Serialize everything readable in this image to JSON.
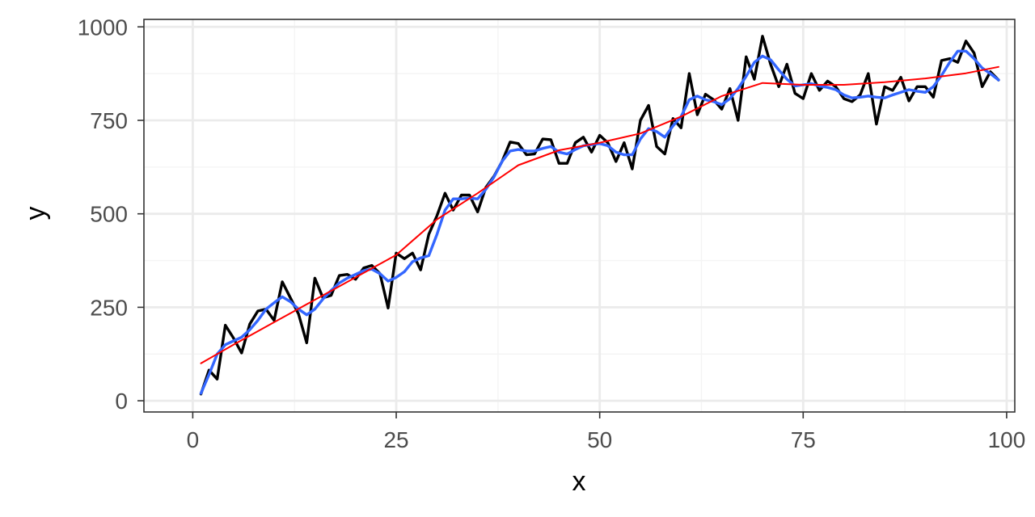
{
  "chart_data": {
    "type": "line",
    "xlabel": "x",
    "ylabel": "y",
    "xlim": [
      -6,
      101
    ],
    "ylim": [
      -30,
      1020
    ],
    "x_ticks": [
      0,
      25,
      50,
      75,
      100
    ],
    "y_ticks": [
      0,
      250,
      500,
      750,
      1000
    ],
    "x_minor_ticks": [
      12.5,
      37.5,
      62.5,
      87.5
    ],
    "y_minor_ticks": [
      125,
      375,
      625,
      875
    ],
    "grid": true,
    "legend": "none",
    "colors": {
      "raw": "#000000",
      "moving_average": "#3366FF",
      "smooth": "#FF0000",
      "grid_major": "#EBEBEB",
      "grid_minor": "#F4F4F4",
      "panel_border": "#333333",
      "tick_text": "#4D4D4D"
    },
    "series": [
      {
        "x": [
          1,
          2,
          3,
          4,
          5,
          6,
          7,
          8,
          9,
          10,
          11,
          12,
          13,
          14,
          15,
          16,
          17,
          18,
          19,
          20,
          21,
          22,
          23,
          24,
          25,
          26,
          27,
          28,
          29,
          30,
          31,
          32,
          33,
          34,
          35,
          36,
          37,
          38,
          39,
          40,
          41,
          42,
          43,
          44,
          45,
          46,
          47,
          48,
          49,
          50,
          51,
          52,
          53,
          54,
          55,
          56,
          57,
          58,
          59,
          60,
          61,
          62,
          63,
          64,
          65,
          66,
          67,
          68,
          69,
          70,
          71,
          72,
          73,
          74,
          75,
          76,
          77,
          78,
          79,
          80,
          81,
          82,
          83,
          84,
          85,
          86,
          87,
          88,
          89,
          90,
          91,
          92,
          93,
          94,
          95,
          96,
          97,
          98,
          99
        ],
        "values": [
          18,
          82,
          58,
          202,
          168,
          128,
          205,
          240,
          245,
          215,
          318,
          275,
          232,
          155,
          328,
          275,
          282,
          335,
          338,
          325,
          355,
          362,
          340,
          248,
          395,
          380,
          395,
          350,
          445,
          495,
          555,
          510,
          550,
          550,
          505,
          570,
          600,
          640,
          692,
          688,
          658,
          660,
          700,
          698,
          635,
          635,
          690,
          705,
          665,
          710,
          690,
          640,
          690,
          620,
          750,
          790,
          680,
          660,
          755,
          730,
          875,
          765,
          820,
          805,
          780,
          835,
          750,
          920,
          860,
          975,
          900,
          840,
          900,
          822,
          808,
          875,
          830,
          855,
          840,
          808,
          800,
          818,
          875,
          740,
          840,
          830,
          865,
          802,
          840,
          840,
          812,
          910,
          915,
          905,
          962,
          930,
          840,
          880,
          858
        ],
        "style": "line"
      },
      {
        "x": [
          1,
          2,
          3,
          4,
          5,
          6,
          7,
          8,
          9,
          10,
          11,
          12,
          13,
          14,
          15,
          16,
          17,
          18,
          19,
          20,
          21,
          22,
          23,
          24,
          25,
          26,
          27,
          28,
          29,
          30,
          31,
          32,
          33,
          34,
          35,
          36,
          37,
          38,
          39,
          40,
          41,
          42,
          43,
          44,
          45,
          46,
          47,
          48,
          49,
          50,
          51,
          52,
          53,
          54,
          55,
          56,
          57,
          58,
          59,
          60,
          61,
          62,
          63,
          64,
          65,
          66,
          67,
          68,
          69,
          70,
          71,
          72,
          73,
          74,
          75,
          76,
          77,
          78,
          79,
          80,
          81,
          82,
          83,
          84,
          85,
          86,
          87,
          88,
          89,
          90,
          91,
          92,
          93,
          94,
          95,
          96,
          97,
          98,
          99
        ],
        "values": [
          20,
          70,
          125,
          150,
          160,
          170,
          190,
          215,
          245,
          262,
          278,
          265,
          245,
          230,
          245,
          272,
          295,
          315,
          328,
          338,
          348,
          352,
          340,
          320,
          330,
          345,
          372,
          382,
          388,
          445,
          510,
          540,
          540,
          542,
          540,
          565,
          598,
          640,
          668,
          672,
          668,
          668,
          675,
          680,
          665,
          660,
          672,
          682,
          685,
          688,
          682,
          665,
          658,
          658,
          700,
          728,
          720,
          705,
          735,
          760,
          805,
          815,
          805,
          800,
          792,
          808,
          835,
          868,
          905,
          922,
          912,
          885,
          860,
          842,
          845,
          848,
          842,
          838,
          832,
          818,
          810,
          812,
          815,
          812,
          810,
          818,
          825,
          832,
          828,
          825,
          840,
          870,
          905,
          935,
          935,
          915,
          890,
          875,
          858
        ],
        "style": "line"
      },
      {
        "x": [
          1,
          5,
          10,
          15,
          20,
          25,
          30,
          35,
          40,
          45,
          50,
          55,
          60,
          65,
          70,
          75,
          80,
          85,
          90,
          95,
          99
        ],
        "values": [
          100,
          150,
          210,
          270,
          330,
          390,
          485,
          555,
          630,
          670,
          690,
          715,
          760,
          815,
          850,
          845,
          845,
          852,
          862,
          876,
          893
        ],
        "style": "line"
      }
    ]
  }
}
